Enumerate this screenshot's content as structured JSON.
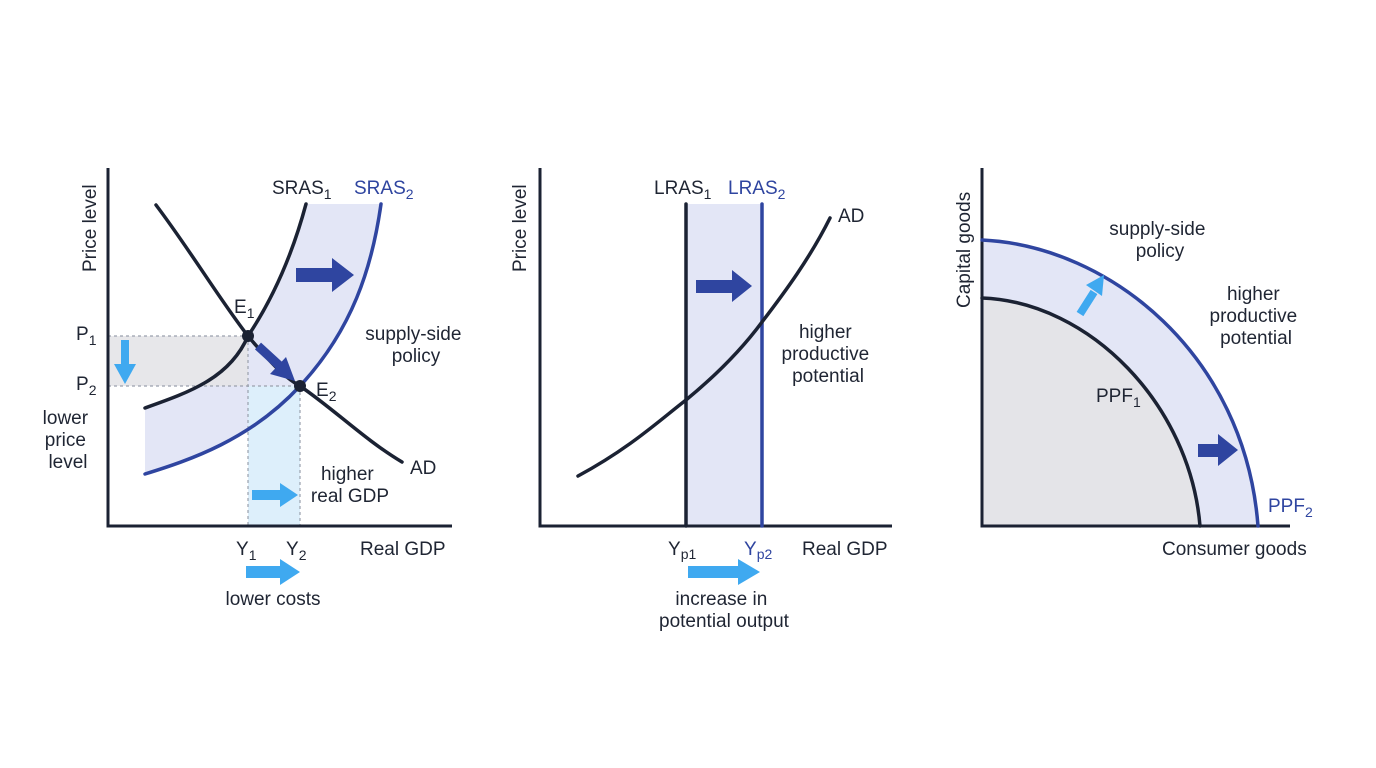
{
  "panel1": {
    "y_axis_label": "Price level",
    "x_axis_label": "Real GDP",
    "sras1": {
      "main": "SRAS",
      "sub": "1"
    },
    "sras2": {
      "main": "SRAS",
      "sub": "2"
    },
    "e1": {
      "main": "E",
      "sub": "1"
    },
    "e2": {
      "main": "E",
      "sub": "2"
    },
    "p1": {
      "main": "P",
      "sub": "1"
    },
    "p2": {
      "main": "P",
      "sub": "2"
    },
    "y1": {
      "main": "Y",
      "sub": "1"
    },
    "y2": {
      "main": "Y",
      "sub": "2"
    },
    "ad_label": "AD",
    "supply_side": [
      "supply-side",
      "policy"
    ],
    "lower_price": [
      "lower",
      "price",
      "level"
    ],
    "higher_gdp": [
      "higher",
      "real GDP"
    ],
    "lower_costs": "lower costs"
  },
  "panel2": {
    "y_axis_label": "Price level",
    "x_axis_label": "Real GDP",
    "lras1": {
      "main": "LRAS",
      "sub": "1"
    },
    "lras2": {
      "main": "LRAS",
      "sub": "2"
    },
    "ad_label": "AD",
    "yp1": {
      "main": "Y",
      "sub": "p1"
    },
    "yp2": {
      "main": "Y",
      "sub": "p2"
    },
    "higher_potential": [
      "higher",
      "productive",
      "potential"
    ],
    "increase_output": [
      "increase in",
      "potential output"
    ]
  },
  "panel3": {
    "y_axis_label": "Capital goods",
    "x_axis_label": "Consumer goods",
    "ppf1": {
      "main": "PPF",
      "sub": "1"
    },
    "ppf2": {
      "main": "PPF",
      "sub": "2"
    },
    "supply_side": [
      "supply-side",
      "policy"
    ],
    "higher_potential": [
      "higher",
      "productive",
      "potential"
    ]
  },
  "colors": {
    "dark": "#1b2233",
    "blue": "#2f45a0",
    "light_blue": "#3fa9f0",
    "band": "#e3e6f6",
    "gray_area": "#e4e4e8",
    "gdp_band": "#ddeffb"
  }
}
